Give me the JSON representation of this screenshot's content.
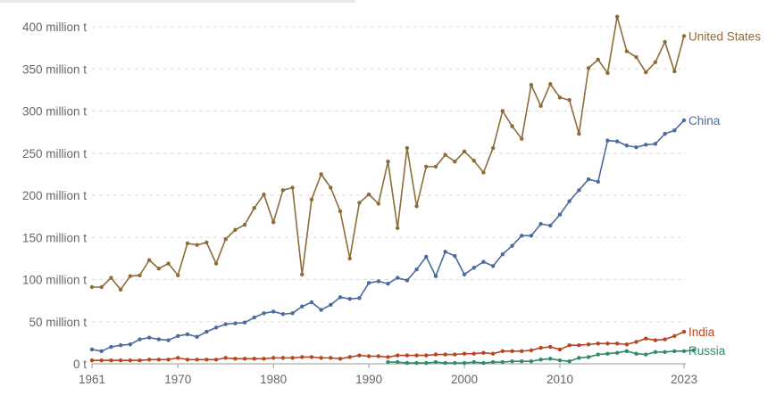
{
  "chart_data": {
    "type": "line",
    "title": "",
    "xlabel": "",
    "ylabel": "",
    "x_ticks": [
      {
        "value": 1961,
        "label": "1961"
      },
      {
        "value": 1970,
        "label": "1970"
      },
      {
        "value": 1980,
        "label": "1980"
      },
      {
        "value": 1990,
        "label": "1990"
      },
      {
        "value": 2000,
        "label": "2000"
      },
      {
        "value": 2010,
        "label": "2010"
      },
      {
        "value": 2023,
        "label": "2023"
      }
    ],
    "y_ticks": [
      {
        "value": 0,
        "label": "0 t"
      },
      {
        "value": 50,
        "label": "50 million t"
      },
      {
        "value": 100,
        "label": "100 million t"
      },
      {
        "value": 150,
        "label": "150 million t"
      },
      {
        "value": 200,
        "label": "200 million t"
      },
      {
        "value": 250,
        "label": "250 million t"
      },
      {
        "value": 300,
        "label": "300 million t"
      },
      {
        "value": 350,
        "label": "350 million t"
      },
      {
        "value": 400,
        "label": "400 million t"
      }
    ],
    "xlim": [
      1961,
      2023
    ],
    "ylim": [
      0,
      400
    ],
    "grid": true,
    "legend": "labels at right end of lines",
    "series": [
      {
        "name": "United States",
        "color": "#8c6d3a",
        "x_start": 1961,
        "values": [
          91,
          91,
          102,
          88,
          104,
          105,
          123,
          113,
          119,
          105,
          143,
          141,
          144,
          119,
          148,
          159,
          165,
          185,
          201,
          168,
          206,
          209,
          106,
          195,
          225,
          209,
          181,
          125,
          191,
          201,
          190,
          240,
          161,
          256,
          187,
          234,
          234,
          248,
          240,
          252,
          241,
          227,
          256,
          300,
          282,
          267,
          331,
          306,
          332,
          316,
          313,
          273,
          351,
          361,
          345,
          412,
          371,
          364,
          346,
          358,
          382,
          347,
          389
        ]
      },
      {
        "name": "China",
        "color": "#4c6a9c",
        "x_start": 1961,
        "values": [
          17,
          15,
          20,
          22,
          23,
          29,
          31,
          29,
          28,
          33,
          35,
          32,
          38,
          43,
          47,
          48,
          49,
          55,
          60,
          62,
          59,
          60,
          68,
          73,
          64,
          70,
          79,
          77,
          78,
          96,
          98,
          95,
          102,
          99,
          112,
          127,
          104,
          133,
          128,
          106,
          114,
          121,
          116,
          130,
          140,
          152,
          152,
          166,
          164,
          177,
          193,
          206,
          219,
          216,
          265,
          264,
          259,
          257,
          260,
          261,
          273,
          277,
          289
        ]
      },
      {
        "name": "India",
        "color": "#b5461e",
        "x_start": 1961,
        "values": [
          4,
          4,
          4,
          4,
          4,
          4,
          5,
          5,
          5,
          7,
          5,
          5,
          5,
          5,
          7,
          6,
          6,
          6,
          6,
          7,
          7,
          7,
          8,
          8,
          7,
          7,
          6,
          8,
          10,
          9,
          9,
          8,
          10,
          10,
          10,
          10,
          11,
          11,
          11,
          12,
          12,
          13,
          12,
          15,
          15,
          15,
          16,
          19,
          20,
          17,
          22,
          22,
          23,
          24,
          24,
          24,
          23,
          26,
          30,
          28,
          29,
          33,
          38
        ]
      },
      {
        "name": "Russia",
        "color": "#2f8a67",
        "x_start": 1992,
        "values": [
          2,
          2,
          1,
          1,
          1,
          2,
          1,
          1,
          1,
          2,
          1,
          2,
          2,
          3,
          3,
          3,
          5,
          6,
          4,
          3,
          7,
          8,
          11,
          12,
          13,
          15,
          12,
          11,
          14,
          14,
          15,
          15,
          16
        ]
      }
    ]
  }
}
